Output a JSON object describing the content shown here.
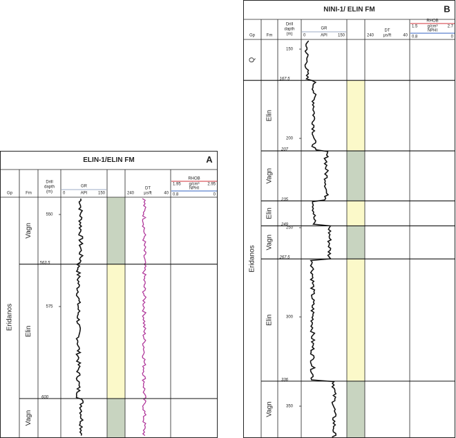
{
  "panels": [
    {
      "letter": "A",
      "title": "ELIN-1/ELIN FM",
      "header": {
        "gp": "Gp",
        "fm": "Fm",
        "depth": [
          "Drill",
          "dapth",
          "(m)"
        ],
        "gr": "GR",
        "gr_unit": "API",
        "gr_min": 0,
        "gr_max": 150,
        "dt": "DT",
        "dt_unit": "µs/ft",
        "dt_min": 240,
        "dt_max": 40,
        "rhob": "RHOB",
        "rhob_unit": "g/cm³",
        "rhob_min": 1.95,
        "rhob_max": 2.95,
        "nphi": "NPHI",
        "nphi_min": 0.8,
        "nphi_max": 0
      },
      "groups": [
        "Eridanos"
      ],
      "depth_ticks": [
        550,
        575
      ],
      "boundaries": [
        563.5,
        600
      ],
      "zones": [
        "Vagn",
        "Elin",
        "Vagn"
      ]
    },
    {
      "letter": "B",
      "title": "NINI-1/ ELIN FM",
      "header": {
        "gp": "Gp",
        "fm": "Fm",
        "depth": [
          "Drill",
          "dapth",
          "(m)"
        ],
        "gr": "GR",
        "gr_unit": "API",
        "gr_min": 0,
        "gr_max": 150,
        "dt": "DT",
        "dt_unit": "µs/ft",
        "dt_min": 240,
        "dt_max": 40,
        "rhob": "RHOB",
        "rhob_unit": "g/cm³",
        "rhob_min": 1.5,
        "rhob_max": 2.7,
        "nphi": "NPHI",
        "nphi_min": 0.8,
        "nphi_max": 0
      },
      "groups": [
        "Q",
        "Eridanos"
      ],
      "depth_ticks": [
        150,
        200,
        250,
        300,
        350
      ],
      "boundaries": [
        167.5,
        207,
        235,
        249,
        267.5,
        336
      ],
      "zones": [
        "Elin",
        "Vagn",
        "Elin",
        "Vagn",
        "Elin",
        "Vagn"
      ]
    }
  ],
  "lith_colors": {
    "Elin": "#fbf9c9",
    "Vagn": "#c8d4c0"
  }
}
